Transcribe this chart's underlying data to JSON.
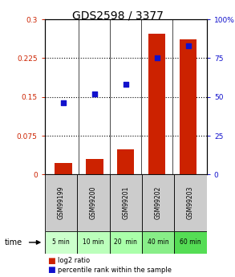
{
  "title": "GDS2598 / 3377",
  "samples": [
    "GSM99199",
    "GSM99200",
    "GSM99201",
    "GSM99202",
    "GSM99203"
  ],
  "time_labels": [
    "5 min",
    "10 min",
    "20  min",
    "40 min",
    "60 min"
  ],
  "log2_ratio": [
    0.022,
    0.03,
    0.048,
    0.272,
    0.262
  ],
  "percentile_rank": [
    46,
    52,
    58,
    75,
    83
  ],
  "ylim_left": [
    0,
    0.3
  ],
  "ylim_right": [
    0,
    100
  ],
  "yticks_left": [
    0,
    0.075,
    0.15,
    0.225,
    0.3
  ],
  "ytick_labels_left": [
    "0",
    "0.075",
    "0.15",
    "0.225",
    "0.3"
  ],
  "yticks_right": [
    0,
    25,
    50,
    75,
    100
  ],
  "ytick_labels_right": [
    "0",
    "25",
    "50",
    "75",
    "100%"
  ],
  "bar_color": "#cc2200",
  "scatter_color": "#1111cc",
  "title_fontsize": 10,
  "tick_fontsize": 6.5,
  "bar_width": 0.55,
  "sample_bg_color": "#cccccc",
  "time_bg_colors": [
    "#ccffcc",
    "#bbffbb",
    "#aaffaa",
    "#88ee88",
    "#55dd55"
  ],
  "legend_red_label": "log2 ratio",
  "legend_blue_label": "percentile rank within the sample"
}
